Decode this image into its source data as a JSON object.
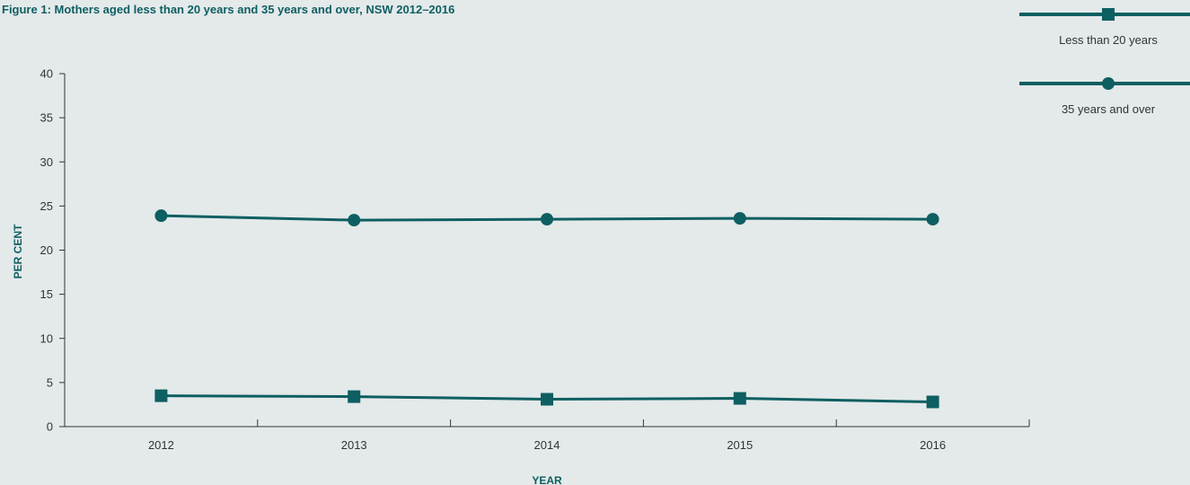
{
  "chart_data": {
    "type": "line",
    "title": "Figure 1: Mothers aged less than 20 years and 35 years and over, NSW 2012–2016",
    "xlabel": "YEAR",
    "ylabel": "PER CENT",
    "x": [
      "2012",
      "2013",
      "2014",
      "2015",
      "2016"
    ],
    "ylim": [
      0,
      40
    ],
    "yticks": [
      "0",
      "5",
      "10",
      "15",
      "20",
      "25",
      "30",
      "35",
      "40"
    ],
    "grid": false,
    "legend_position": "top-right",
    "series": [
      {
        "name": "Less than 20 years",
        "marker": "square",
        "values": [
          3.5,
          3.4,
          3.1,
          3.2,
          2.8
        ]
      },
      {
        "name": "35 years and over",
        "marker": "circle",
        "values": [
          23.9,
          23.4,
          23.5,
          23.6,
          23.5
        ]
      }
    ],
    "colors": {
      "line": "#0e5f61",
      "axis": "#333333",
      "background": "#e4e9ea"
    }
  }
}
